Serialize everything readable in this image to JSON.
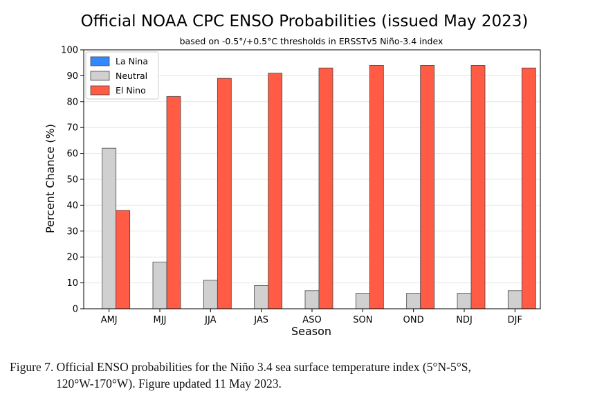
{
  "chart_data": {
    "type": "bar",
    "title": "Official NOAA CPC ENSO Probabilities (issued May 2023)",
    "subtitle": "based on -0.5°/+0.5°C thresholds in ERSSTv5 Niño-3.4 index",
    "xlabel": "Season",
    "ylabel": "Percent Chance (%)",
    "ylim": [
      0,
      100
    ],
    "yticks": [
      0,
      10,
      20,
      30,
      40,
      50,
      60,
      70,
      80,
      90,
      100
    ],
    "grid": true,
    "legend_position": "top-left",
    "categories": [
      "AMJ",
      "MJJ",
      "JJA",
      "JAS",
      "ASO",
      "SON",
      "OND",
      "NDJ",
      "DJF"
    ],
    "series": [
      {
        "name": "La Nina",
        "color": "#3388ff",
        "values": [
          0,
          0,
          0,
          0,
          0,
          0,
          0,
          0,
          0
        ]
      },
      {
        "name": "Neutral",
        "color": "#d0d0d0",
        "values": [
          62,
          18,
          11,
          9,
          7,
          6,
          6,
          6,
          7
        ]
      },
      {
        "name": "El Nino",
        "color": "#ff5b45",
        "values": [
          38,
          82,
          89,
          91,
          93,
          94,
          94,
          94,
          93
        ]
      }
    ]
  },
  "caption": {
    "line1": "Figure 7. Official ENSO probabilities for the Niño 3.4 sea surface temperature index (5°N-5°S,",
    "line2": "120°W-170°W). Figure updated 11 May 2023."
  }
}
